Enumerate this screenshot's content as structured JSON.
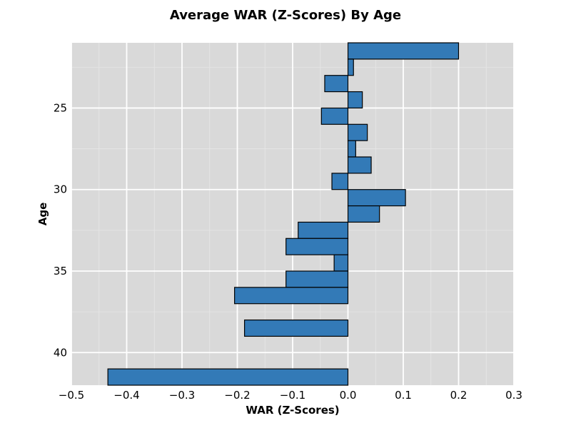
{
  "chart_data": {
    "type": "bar",
    "orientation": "horizontal",
    "title": "Average WAR (Z-Scores) By Age",
    "xlabel": "WAR (Z-Scores)",
    "ylabel": "Age",
    "xlim": [
      -0.5,
      0.3
    ],
    "ylim": [
      42,
      21
    ],
    "x_ticks": [
      -0.5,
      -0.4,
      -0.3,
      -0.2,
      -0.1,
      0.0,
      0.1,
      0.2,
      0.3
    ],
    "x_tick_labels": [
      "−0.5",
      "−0.4",
      "−0.3",
      "−0.2",
      "−0.1",
      "0.0",
      "0.1",
      "0.2",
      "0.3"
    ],
    "y_ticks": [
      25,
      30,
      35,
      40
    ],
    "y_tick_labels": [
      "25",
      "30",
      "35",
      "40"
    ],
    "grid": true,
    "background_color": "#d9d9d9",
    "bar_color": "#337ab7",
    "bar_edge_color": "#000000",
    "categories": [
      21,
      22,
      23,
      24,
      25,
      26,
      27,
      28,
      29,
      30,
      31,
      32,
      33,
      34,
      35,
      36,
      38,
      41
    ],
    "values": [
      0.2,
      0.01,
      -0.042,
      0.026,
      -0.048,
      0.035,
      0.014,
      0.042,
      -0.029,
      0.104,
      0.057,
      -0.09,
      -0.112,
      -0.025,
      -0.112,
      -0.205,
      -0.187,
      -0.434
    ]
  }
}
